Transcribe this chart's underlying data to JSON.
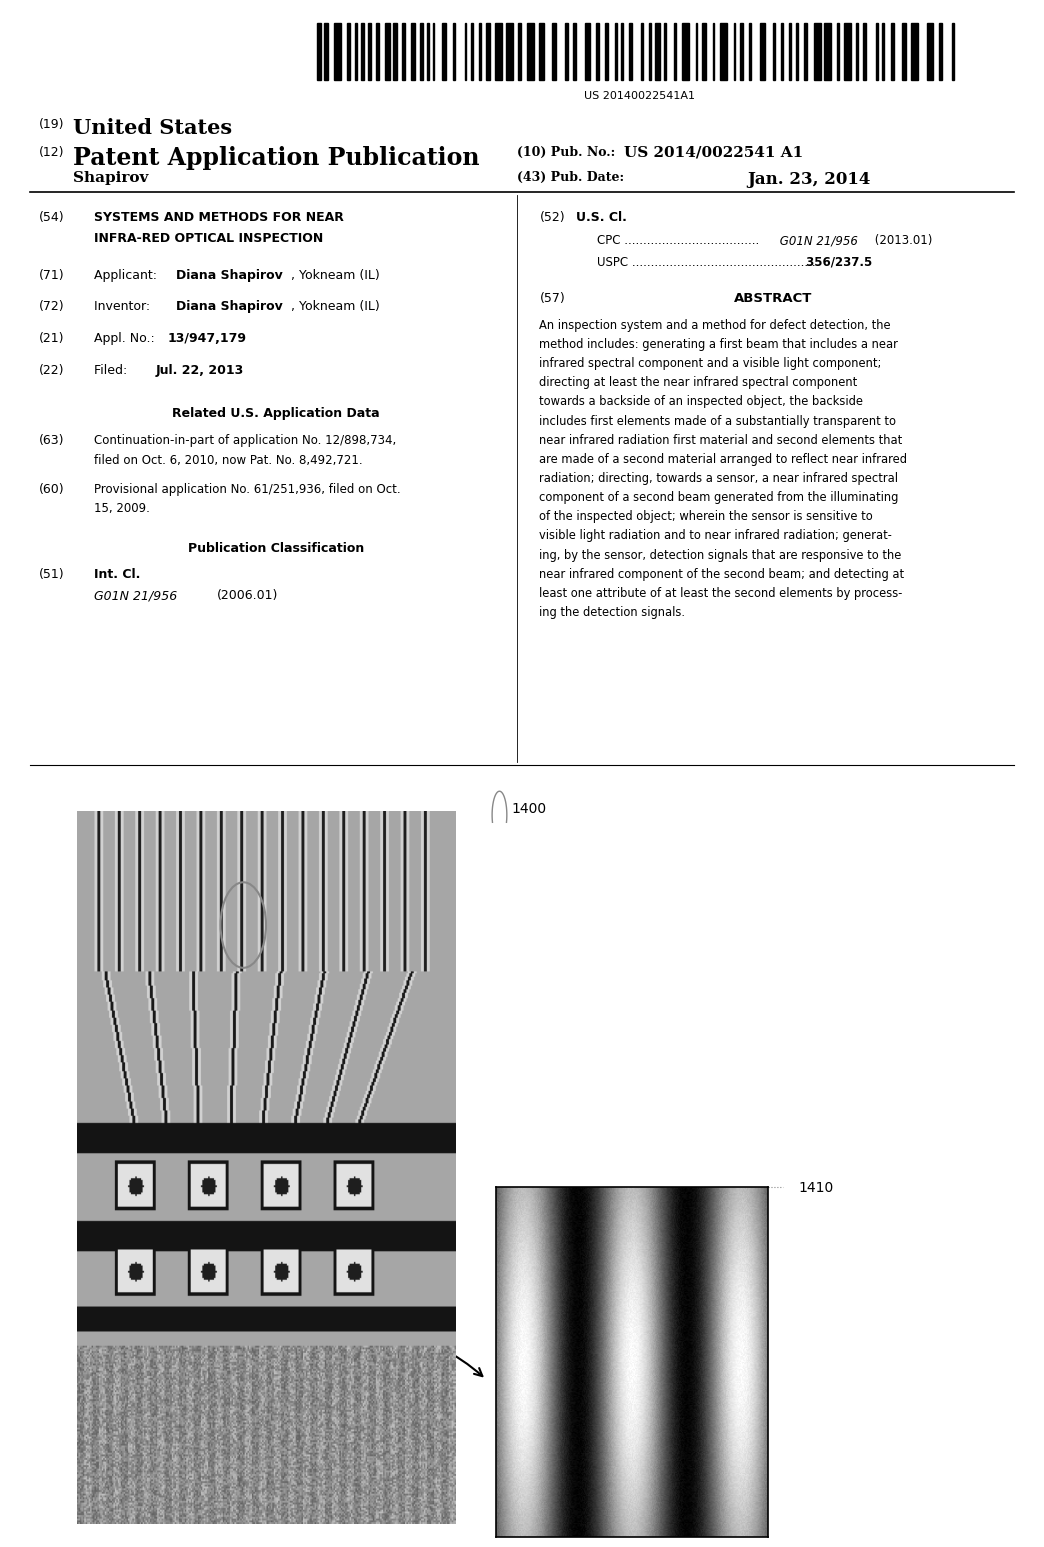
{
  "background_color": "#ffffff",
  "barcode_text": "US 20140022541A1",
  "header": {
    "country_label": "(19)",
    "country": "United States",
    "type_label": "(12)",
    "type": "Patent Application Publication",
    "pub_no_label": "(10) Pub. No.:",
    "pub_no": "US 2014/0022541 A1",
    "date_label": "(43) Pub. Date:",
    "date": "Jan. 23, 2014",
    "inventor_surname": "Shapirov"
  },
  "left_col": {
    "title_label": "(54)",
    "title_line1": "SYSTEMS AND METHODS FOR NEAR",
    "title_line2": "INFRA-RED OPTICAL INSPECTION",
    "applicant_label": "(71)",
    "inventor_label": "(72)",
    "appl_no_label": "(21)",
    "appl_no_num": "13/947,179",
    "filed_label": "(22)",
    "filed_date": "Jul. 22, 2013",
    "related_header": "Related U.S. Application Data",
    "related_63_label": "(63)",
    "related_63_line1": "Continuation-in-part of application No. 12/898,734,",
    "related_63_line2": "filed on Oct. 6, 2010, now Pat. No. 8,492,721.",
    "related_60_label": "(60)",
    "related_60_line1": "Provisional application No. 61/251,936, filed on Oct.",
    "related_60_line2": "15, 2009.",
    "pub_class_header": "Publication Classification",
    "int_cl_label": "(51)",
    "int_cl_text": "Int. Cl.",
    "int_cl_value": "G01N 21/956",
    "int_cl_year": "(2006.01)"
  },
  "right_col": {
    "us_cl_label": "(52)",
    "us_cl_text": "U.S. Cl.",
    "cpc_label": "CPC",
    "cpc_dots": " ....................................",
    "cpc_value": " G01N 21/956",
    "cpc_year": " (2013.01)",
    "uspc_label": "USPC",
    "uspc_dots": " ..................................................",
    "uspc_value": " 356/237.5",
    "abstract_label": "(57)",
    "abstract_title": "ABSTRACT",
    "abstract_lines": [
      "An inspection system and a method for defect detection, the",
      "method includes: generating a first beam that includes a near",
      "infrared spectral component and a visible light component;",
      "directing at least the near infrared spectral component",
      "towards a backside of an inspected object, the backside",
      "includes first elements made of a substantially transparent to",
      "near infrared radiation first material and second elements that",
      "are made of a second material arranged to reflect near infrared",
      "radiation; directing, towards a sensor, a near infrared spectral",
      "component of a second beam generated from the illuminating",
      "of the inspected object; wherein the sensor is sensitive to",
      "visible light radiation and to near infrared radiation; generat-",
      "ing, by the sensor, detection signals that are responsive to the",
      "near infrared component of the second beam; and detecting at",
      "least one attribute of at least the second elements by process-",
      "ing the detection signals."
    ]
  },
  "figure": {
    "label_1400": "1400",
    "label_1410": "1410"
  }
}
